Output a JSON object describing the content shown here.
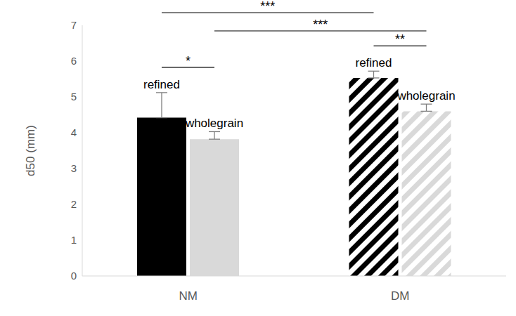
{
  "chart_data": {
    "type": "bar",
    "categories": [
      "NM",
      "DM"
    ],
    "y_label": "d50 (mm)",
    "ylim": [
      0,
      7
    ],
    "yticks": [
      0,
      1,
      2,
      3,
      4,
      5,
      6,
      7
    ],
    "grid": false,
    "series": [
      {
        "name": "refined",
        "color": "#000000",
        "values": [
          4.42,
          5.53
        ],
        "errors": [
          0.7,
          0.19
        ]
      },
      {
        "name": "wholegrain",
        "color": "#d9d9d9",
        "values": [
          3.82,
          4.6
        ],
        "errors": [
          0.21,
          0.2
        ]
      }
    ],
    "significance": [
      {
        "label": "***",
        "between": [
          {
            "category": "NM",
            "series": "refined"
          },
          {
            "category": "DM",
            "series": "refined"
          }
        ]
      },
      {
        "label": "***",
        "between": [
          {
            "category": "NM",
            "series": "wholegrain"
          },
          {
            "category": "DM",
            "series": "wholegrain"
          }
        ]
      },
      {
        "label": "*",
        "between": [
          {
            "category": "NM",
            "series": "refined"
          },
          {
            "category": "NM",
            "series": "wholegrain"
          }
        ]
      },
      {
        "label": "**",
        "between": [
          {
            "category": "DM",
            "series": "refined"
          },
          {
            "category": "DM",
            "series": "wholegrain"
          }
        ]
      }
    ]
  }
}
